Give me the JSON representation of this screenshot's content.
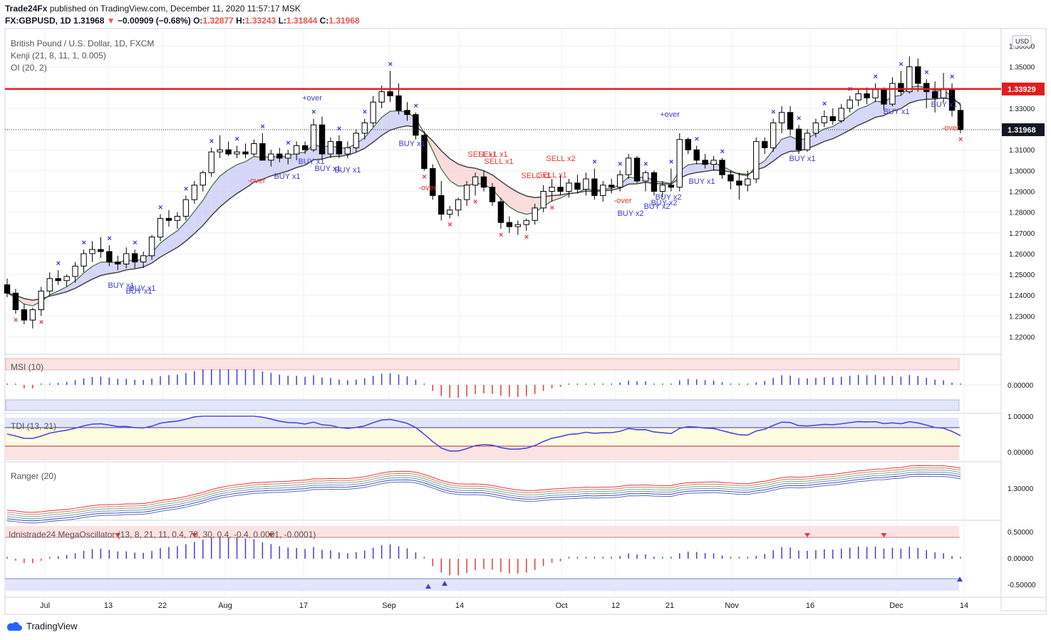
{
  "header": {
    "publisher": "Trade24Fx",
    "published_text": "published on TradingView.com, December 11, 2020 11:57:17 MSK",
    "symbol": "FX:GBPUSD, 1D",
    "last": "1.31968",
    "change": "−0.00909 (−0.68%)",
    "o_label": "O:",
    "o": "1.32877",
    "h_label": "H:",
    "h": "1.33243",
    "l_label": "L:",
    "l": "1.31844",
    "c_label": "C:",
    "c": "1.31968"
  },
  "legend": {
    "main": "British Pound / U.S. Dollar, 1D, FXCM",
    "kenji": "Kenji (21, 8, 11, 1, 0.005)",
    "oi": "OI (20, 2)",
    "msi": "MSI (10)",
    "tdi": "TDI (13, 21)",
    "ranger": "Ranger (20)",
    "mega": "Idnistrade24 MegaOscillator (13, 8, 21, 11, 0.4, 70, 30, 0.4, -0.4, 0.0001, -0.0001)"
  },
  "price_axis": {
    "currency": "USD",
    "ticks": [
      "1.36000",
      "1.35000",
      "1.34000",
      "1.33000",
      "1.32000",
      "1.31000",
      "1.30000",
      "1.29000",
      "1.28000",
      "1.27000",
      "1.26000",
      "1.25000",
      "1.24000",
      "1.23000",
      "1.22000"
    ],
    "resistance_label": "1.33929",
    "last_label": "1.31968"
  },
  "pane_axes": {
    "msi": [
      "0.00000"
    ],
    "tdi": [
      "1.00000",
      "0.00000"
    ],
    "ranger": [
      "1.30000"
    ],
    "mega": [
      "0.50000",
      "0.00000",
      "-0.50000"
    ]
  },
  "time_axis": [
    "Jul",
    "13",
    "22",
    "Aug",
    "17",
    "Sep",
    "14",
    "Oct",
    "12",
    "21",
    "Nov",
    "16",
    "Dec",
    "14"
  ],
  "signal_labels": [
    "BUY x1",
    "BUY x1",
    "BUY x1",
    "-over",
    "BUY x1",
    "BUY x1",
    "BUY x1",
    "BUY x1",
    "+over",
    "BUY x1",
    "-over",
    "SELL x1",
    "SELL x1",
    "SELL x1",
    "SELL x1",
    "SELL x2",
    "SELL x1",
    "-over",
    "BUY x2",
    "BUY x2",
    "BUY x2",
    "BUY x2",
    "+over",
    "BUY x1",
    "BUY x1",
    "BUY x1",
    "BUY x1",
    "-over"
  ],
  "brand": "TradingView",
  "colors": {
    "bull_border": "#000000",
    "bear_fill": "#000000",
    "resistance": "#e01e1e",
    "cloud_up": "#c8c8f5",
    "cloud_down": "#f8d0d0",
    "buy_text": "#3b3bd6",
    "sell_text": "#e53935",
    "msi_up": "#3f3fd9",
    "msi_down": "#e53935",
    "msi_neutral": "#43a047"
  },
  "chart_data": {
    "type": "candlestick",
    "series_name": "GBPUSD",
    "timeframe": "1D",
    "dates": [
      "2020-06-22..2020-12-11 (daily)"
    ],
    "ohlc_approx": [
      [
        1.245,
        1.248,
        1.239,
        1.241
      ],
      [
        1.241,
        1.243,
        1.231,
        1.233
      ],
      [
        1.233,
        1.236,
        1.226,
        1.228
      ],
      [
        1.228,
        1.234,
        1.224,
        1.233
      ],
      [
        1.233,
        1.244,
        1.23,
        1.242
      ],
      [
        1.242,
        1.251,
        1.24,
        1.248
      ],
      [
        1.248,
        1.252,
        1.245,
        1.247
      ],
      [
        1.247,
        1.25,
        1.244,
        1.249
      ],
      [
        1.249,
        1.256,
        1.246,
        1.254
      ],
      [
        1.254,
        1.262,
        1.251,
        1.26
      ],
      [
        1.26,
        1.266,
        1.256,
        1.262
      ],
      [
        1.262,
        1.268,
        1.258,
        1.261
      ],
      [
        1.261,
        1.264,
        1.254,
        1.256
      ],
      [
        1.256,
        1.259,
        1.252,
        1.255
      ],
      [
        1.255,
        1.263,
        1.253,
        1.26
      ],
      [
        1.26,
        1.262,
        1.253,
        1.256
      ],
      [
        1.256,
        1.261,
        1.253,
        1.259
      ],
      [
        1.259,
        1.269,
        1.257,
        1.268
      ],
      [
        1.268,
        1.279,
        1.266,
        1.277
      ],
      [
        1.277,
        1.281,
        1.273,
        1.276
      ],
      [
        1.276,
        1.28,
        1.272,
        1.278
      ],
      [
        1.278,
        1.288,
        1.276,
        1.286
      ],
      [
        1.286,
        1.295,
        1.284,
        1.293
      ],
      [
        1.293,
        1.3,
        1.29,
        1.299
      ],
      [
        1.299,
        1.311,
        1.297,
        1.309
      ],
      [
        1.309,
        1.317,
        1.306,
        1.31
      ],
      [
        1.31,
        1.314,
        1.307,
        1.308
      ],
      [
        1.308,
        1.312,
        1.306,
        1.309
      ],
      [
        1.309,
        1.313,
        1.306,
        1.308
      ],
      [
        1.308,
        1.315,
        1.307,
        1.313
      ],
      [
        1.313,
        1.318,
        1.307,
        1.305
      ],
      [
        1.305,
        1.31,
        1.302,
        1.308
      ],
      [
        1.308,
        1.311,
        1.304,
        1.306
      ],
      [
        1.306,
        1.31,
        1.303,
        1.308
      ],
      [
        1.308,
        1.314,
        1.305,
        1.312
      ],
      [
        1.312,
        1.314,
        1.308,
        1.31
      ],
      [
        1.31,
        1.325,
        1.309,
        1.322
      ],
      [
        1.322,
        1.326,
        1.305,
        1.308
      ],
      [
        1.308,
        1.316,
        1.306,
        1.314
      ],
      [
        1.314,
        1.317,
        1.306,
        1.308
      ],
      [
        1.308,
        1.314,
        1.306,
        1.311
      ],
      [
        1.311,
        1.32,
        1.309,
        1.318
      ],
      [
        1.318,
        1.325,
        1.315,
        1.323
      ],
      [
        1.323,
        1.336,
        1.321,
        1.333
      ],
      [
        1.333,
        1.341,
        1.33,
        1.338
      ],
      [
        1.338,
        1.348,
        1.333,
        1.336
      ],
      [
        1.336,
        1.342,
        1.327,
        1.329
      ],
      [
        1.329,
        1.333,
        1.324,
        1.327
      ],
      [
        1.327,
        1.328,
        1.315,
        1.317
      ],
      [
        1.317,
        1.319,
        1.3,
        1.301
      ],
      [
        1.301,
        1.303,
        1.286,
        1.288
      ],
      [
        1.288,
        1.295,
        1.276,
        1.279
      ],
      [
        1.279,
        1.283,
        1.277,
        1.281
      ],
      [
        1.281,
        1.287,
        1.278,
        1.286
      ],
      [
        1.286,
        1.295,
        1.283,
        1.293
      ],
      [
        1.293,
        1.299,
        1.288,
        1.297
      ],
      [
        1.297,
        1.3,
        1.29,
        1.292
      ],
      [
        1.292,
        1.294,
        1.283,
        1.285
      ],
      [
        1.285,
        1.287,
        1.272,
        1.275
      ],
      [
        1.275,
        1.278,
        1.27,
        1.273
      ],
      [
        1.273,
        1.276,
        1.269,
        1.274
      ],
      [
        1.274,
        1.277,
        1.271,
        1.276
      ],
      [
        1.276,
        1.284,
        1.274,
        1.282
      ],
      [
        1.282,
        1.293,
        1.28,
        1.29
      ],
      [
        1.29,
        1.296,
        1.285,
        1.292
      ],
      [
        1.292,
        1.298,
        1.288,
        1.29
      ],
      [
        1.29,
        1.296,
        1.287,
        1.294
      ],
      [
        1.294,
        1.298,
        1.289,
        1.291
      ],
      [
        1.291,
        1.299,
        1.288,
        1.296
      ],
      [
        1.296,
        1.301,
        1.286,
        1.288
      ],
      [
        1.288,
        1.295,
        1.285,
        1.293
      ],
      [
        1.293,
        1.296,
        1.289,
        1.292
      ],
      [
        1.292,
        1.3,
        1.29,
        1.298
      ],
      [
        1.298,
        1.308,
        1.296,
        1.306
      ],
      [
        1.306,
        1.307,
        1.294,
        1.295
      ],
      [
        1.295,
        1.3,
        1.29,
        1.299
      ],
      [
        1.299,
        1.3,
        1.288,
        1.29
      ],
      [
        1.29,
        1.295,
        1.287,
        1.293
      ],
      [
        1.293,
        1.301,
        1.29,
        1.292
      ],
      [
        1.292,
        1.318,
        1.29,
        1.315
      ],
      [
        1.315,
        1.316,
        1.308,
        1.31
      ],
      [
        1.31,
        1.312,
        1.303,
        1.305
      ],
      [
        1.305,
        1.308,
        1.301,
        1.303
      ],
      [
        1.303,
        1.307,
        1.3,
        1.305
      ],
      [
        1.305,
        1.306,
        1.296,
        1.298
      ],
      [
        1.298,
        1.3,
        1.291,
        1.295
      ],
      [
        1.295,
        1.299,
        1.286,
        1.293
      ],
      [
        1.293,
        1.3,
        1.29,
        1.296
      ],
      [
        1.296,
        1.316,
        1.294,
        1.314
      ],
      [
        1.314,
        1.316,
        1.308,
        1.311
      ],
      [
        1.311,
        1.325,
        1.309,
        1.323
      ],
      [
        1.323,
        1.331,
        1.318,
        1.328
      ],
      [
        1.328,
        1.331,
        1.317,
        1.32
      ],
      [
        1.32,
        1.322,
        1.308,
        1.31
      ],
      [
        1.31,
        1.32,
        1.309,
        1.318
      ],
      [
        1.318,
        1.325,
        1.316,
        1.323
      ],
      [
        1.323,
        1.329,
        1.321,
        1.326
      ],
      [
        1.326,
        1.33,
        1.322,
        1.324
      ],
      [
        1.324,
        1.332,
        1.323,
        1.33
      ],
      [
        1.33,
        1.336,
        1.328,
        1.334
      ],
      [
        1.334,
        1.339,
        1.331,
        1.337
      ],
      [
        1.337,
        1.34,
        1.332,
        1.335
      ],
      [
        1.335,
        1.342,
        1.333,
        1.339
      ],
      [
        1.339,
        1.34,
        1.329,
        1.332
      ],
      [
        1.332,
        1.345,
        1.331,
        1.342
      ],
      [
        1.342,
        1.348,
        1.336,
        1.338
      ],
      [
        1.338,
        1.355,
        1.337,
        1.35
      ],
      [
        1.35,
        1.354,
        1.338,
        1.342
      ],
      [
        1.342,
        1.344,
        1.33,
        1.338
      ],
      [
        1.338,
        1.343,
        1.328,
        1.335
      ],
      [
        1.335,
        1.347,
        1.333,
        1.339
      ],
      [
        1.339,
        1.342,
        1.326,
        1.329
      ],
      [
        1.329,
        1.332,
        1.318,
        1.3197
      ]
    ],
    "resistance_level": 1.33929,
    "last_close": 1.31968,
    "ylim": [
      1.215,
      1.365
    ],
    "grid": true
  }
}
